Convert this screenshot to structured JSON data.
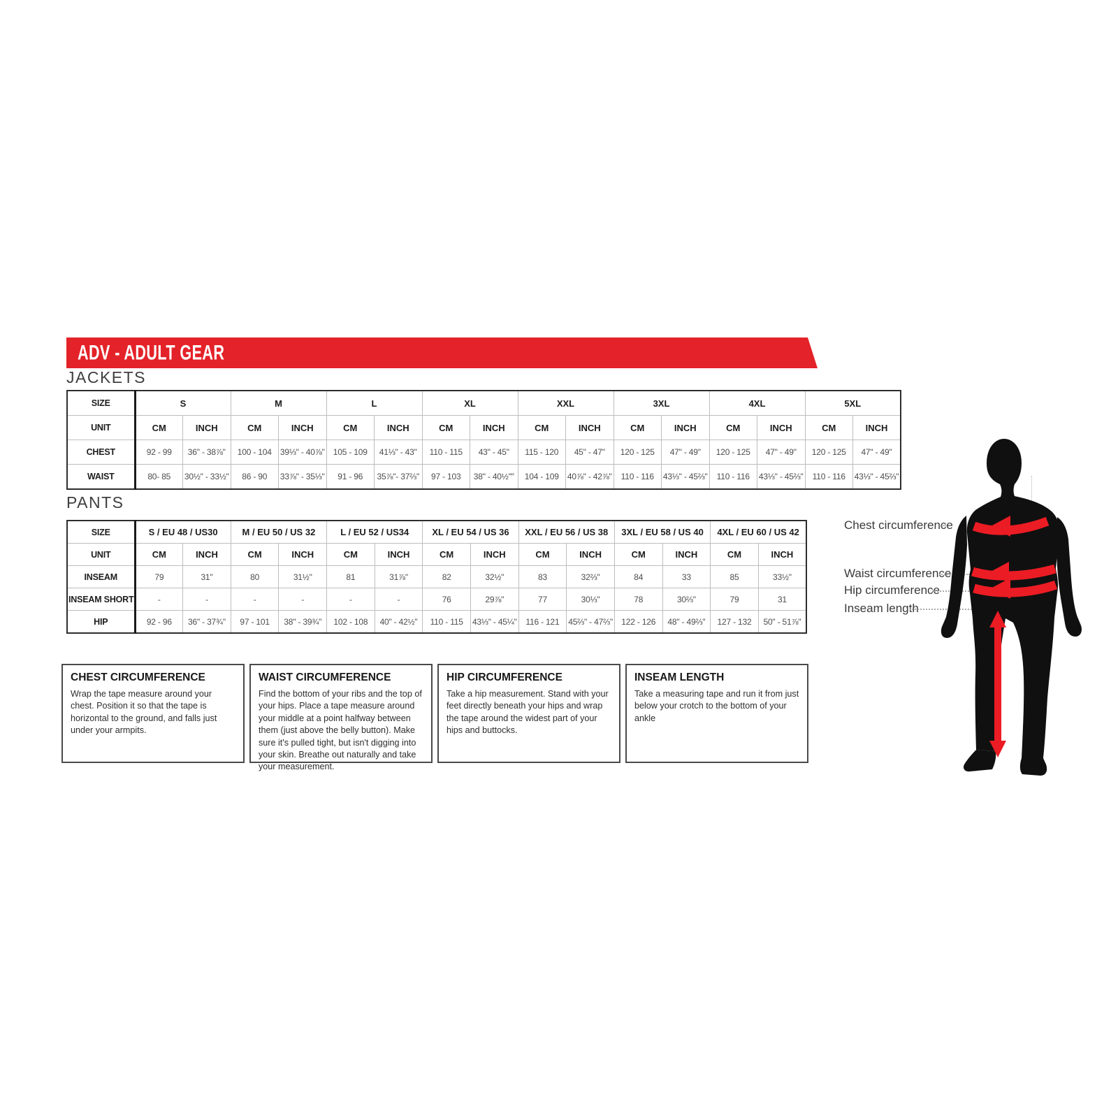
{
  "banner": {
    "title": "ADV - ADULT GEAR",
    "color": "#e42229"
  },
  "headings": {
    "jackets": "JACKETS",
    "pants": "PANTS"
  },
  "jackets_table": {
    "size_label": "SIZE",
    "unit_label": "UNIT",
    "cm": "CM",
    "inch": "INCH",
    "sizes": [
      "S",
      "M",
      "L",
      "XL",
      "XXL",
      "3XL",
      "4XL",
      "5XL"
    ],
    "rows": [
      {
        "label": "CHEST",
        "values": [
          "92 - 99",
          "36\" - 38⅞\"",
          "100 - 104",
          "39⅓\" - 40⅞\"",
          "105 - 109",
          "41⅓\" - 43\"",
          "110 - 115",
          "43\" - 45\"",
          "115 - 120",
          "45\" - 47\"",
          "120 - 125",
          "47\" - 49\"",
          "120 - 125",
          "47\" - 49\"",
          "120 - 125",
          "47\" - 49\""
        ]
      },
      {
        "label": "WAIST",
        "values": [
          "80- 85",
          "30½\" - 33½\"",
          "86 - 90",
          "33⅞\" - 35⅓\"",
          "91 - 96",
          "35⅞\"- 37⅔\"",
          "97 - 103",
          "38\" - 40½\"\"",
          "104 - 109",
          "40⅞\" - 42⅞\"",
          "110 - 116",
          "43⅓\" - 45⅔\"",
          "110 - 116",
          "43⅓\" - 45⅔\"",
          "110 - 116",
          "43⅓\" - 45⅔\""
        ]
      }
    ]
  },
  "pants_table": {
    "size_label": "SIZE",
    "unit_label": "UNIT",
    "cm": "CM",
    "inch": "INCH",
    "sizes": [
      "S / EU 48 / US30",
      "M / EU 50 / US 32",
      "L / EU 52 / US34",
      "XL / EU 54 / US 36",
      "XXL / EU 56 / US 38",
      "3XL / EU 58 / US 40",
      "4XL / EU 60 / US 42"
    ],
    "rows": [
      {
        "label": "INSEAM",
        "values": [
          "79",
          "31\"",
          "80",
          "31½\"",
          "81",
          "31⅞\"",
          "82",
          "32½\"",
          "83",
          "32⅔\"",
          "84",
          "33",
          "85",
          "33½\""
        ]
      },
      {
        "label": "INSEAM SHORT",
        "values": [
          "-",
          "-",
          "-",
          "-",
          "-",
          "-",
          "76",
          "29⅞\"",
          "77",
          "30⅓\"",
          "78",
          "30⅔\"",
          "79",
          "31"
        ]
      },
      {
        "label": "HIP",
        "values": [
          "92 - 96",
          "36\" - 37¾\"",
          "97 - 101",
          "38\" - 39¾\"",
          "102 - 108",
          "40\" - 42½\"",
          "110 - 115",
          "43⅓\" - 45¼\"",
          "116 - 121",
          "45⅔\" - 47⅔\"",
          "122 - 126",
          "48\" - 49⅔\"",
          "127 - 132",
          "50\" - 51⅞\""
        ]
      }
    ]
  },
  "info_boxes": [
    {
      "title": "CHEST CIRCUMFERENCE",
      "body": "Wrap the tape measure around your chest. Position it so that the tape is horizontal to the ground, and falls just under your armpits."
    },
    {
      "title": "WAIST CIRCUMFERENCE",
      "body": "Find the bottom of your ribs and the top of your hips. Place a tape measure around your middle at a point halfway between them (just above the belly button). Make sure it's pulled tight, but isn't digging into your skin. Breathe out naturally and take your measurement."
    },
    {
      "title": "HIP CIRCUMFERENCE",
      "body": "Take a hip measurement. Stand with your feet directly beneath your hips and wrap the tape around the widest part of your hips and buttocks."
    },
    {
      "title": "INSEAM LENGTH",
      "body": "Take a measuring tape and run it from just below your crotch to the bottom of your ankle"
    }
  ],
  "figure": {
    "labels": [
      "Chest circumference",
      "Waist circumference",
      "Hip circumference",
      "Inseam length"
    ],
    "silhouette_color": "#101010",
    "arrow_color": "#ec1c24"
  }
}
